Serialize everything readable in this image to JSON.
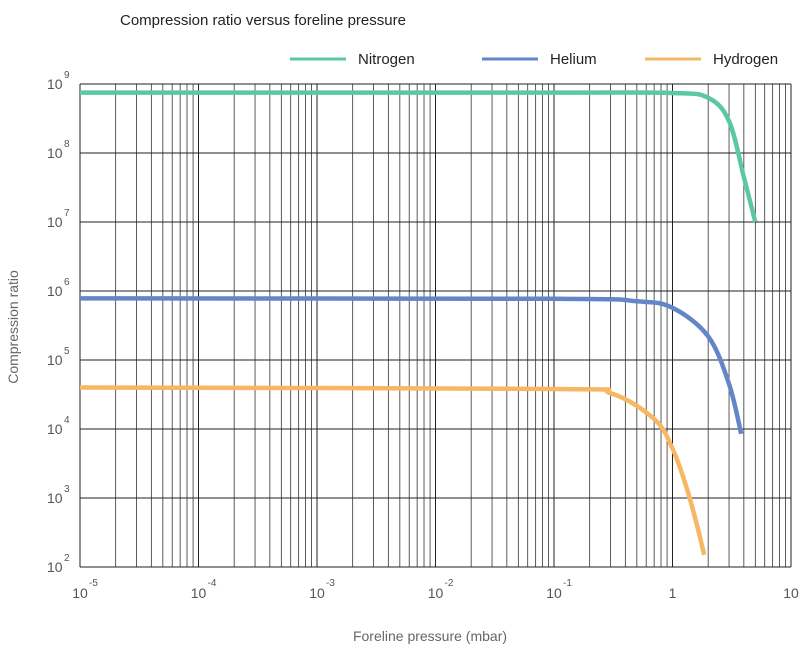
{
  "chart_data": {
    "type": "line",
    "title": "Compression ratio versus foreline pressure",
    "xlabel": "Foreline pressure (mbar)",
    "ylabel": "Compression ratio",
    "x_scale": "log",
    "y_scale": "log",
    "xlim": [
      1e-05,
      10
    ],
    "ylim": [
      100,
      1000000000
    ],
    "x_ticks": [
      {
        "base": "10",
        "exp": "-5",
        "value": 1e-05
      },
      {
        "base": "10",
        "exp": "-4",
        "value": 0.0001
      },
      {
        "base": "10",
        "exp": "-3",
        "value": 0.001
      },
      {
        "base": "10",
        "exp": "-2",
        "value": 0.01
      },
      {
        "base": "10",
        "exp": "-1",
        "value": 0.1
      },
      {
        "base": "1",
        "exp": "",
        "value": 1
      },
      {
        "base": "10",
        "exp": "",
        "value": 10
      }
    ],
    "y_ticks": [
      {
        "base": "10",
        "exp": "2",
        "value": 100
      },
      {
        "base": "10",
        "exp": "3",
        "value": 1000
      },
      {
        "base": "10",
        "exp": "4",
        "value": 10000
      },
      {
        "base": "10",
        "exp": "5",
        "value": 100000
      },
      {
        "base": "10",
        "exp": "6",
        "value": 1000000
      },
      {
        "base": "10",
        "exp": "7",
        "value": 10000000
      },
      {
        "base": "10",
        "exp": "8",
        "value": 100000000
      },
      {
        "base": "10",
        "exp": "9",
        "value": 1000000000
      }
    ],
    "grid": true,
    "legend_position": "top-right",
    "series": [
      {
        "name": "Nitrogen",
        "color": "#5cc7a6",
        "points": [
          [
            1e-05,
            750000000
          ],
          [
            0.1,
            750000000
          ],
          [
            1,
            740000000
          ],
          [
            2,
            630000000
          ],
          [
            3,
            290000000
          ],
          [
            4,
            45000000
          ],
          [
            5,
            10000000
          ]
        ]
      },
      {
        "name": "Helium",
        "color": "#6486c8",
        "points": [
          [
            1e-05,
            780000
          ],
          [
            0.1,
            770000
          ],
          [
            0.5,
            710000
          ],
          [
            1,
            570000
          ],
          [
            2,
            220000
          ],
          [
            3,
            45000
          ],
          [
            3.8,
            8500
          ]
        ]
      },
      {
        "name": "Hydrogen",
        "color": "#f6b865",
        "points": [
          [
            1e-05,
            40000
          ],
          [
            0.1,
            38000
          ],
          [
            0.3,
            33000
          ],
          [
            0.7,
            14000
          ],
          [
            1,
            5200
          ],
          [
            1.3,
            1500
          ],
          [
            1.6,
            420
          ],
          [
            1.85,
            150
          ]
        ]
      }
    ]
  }
}
